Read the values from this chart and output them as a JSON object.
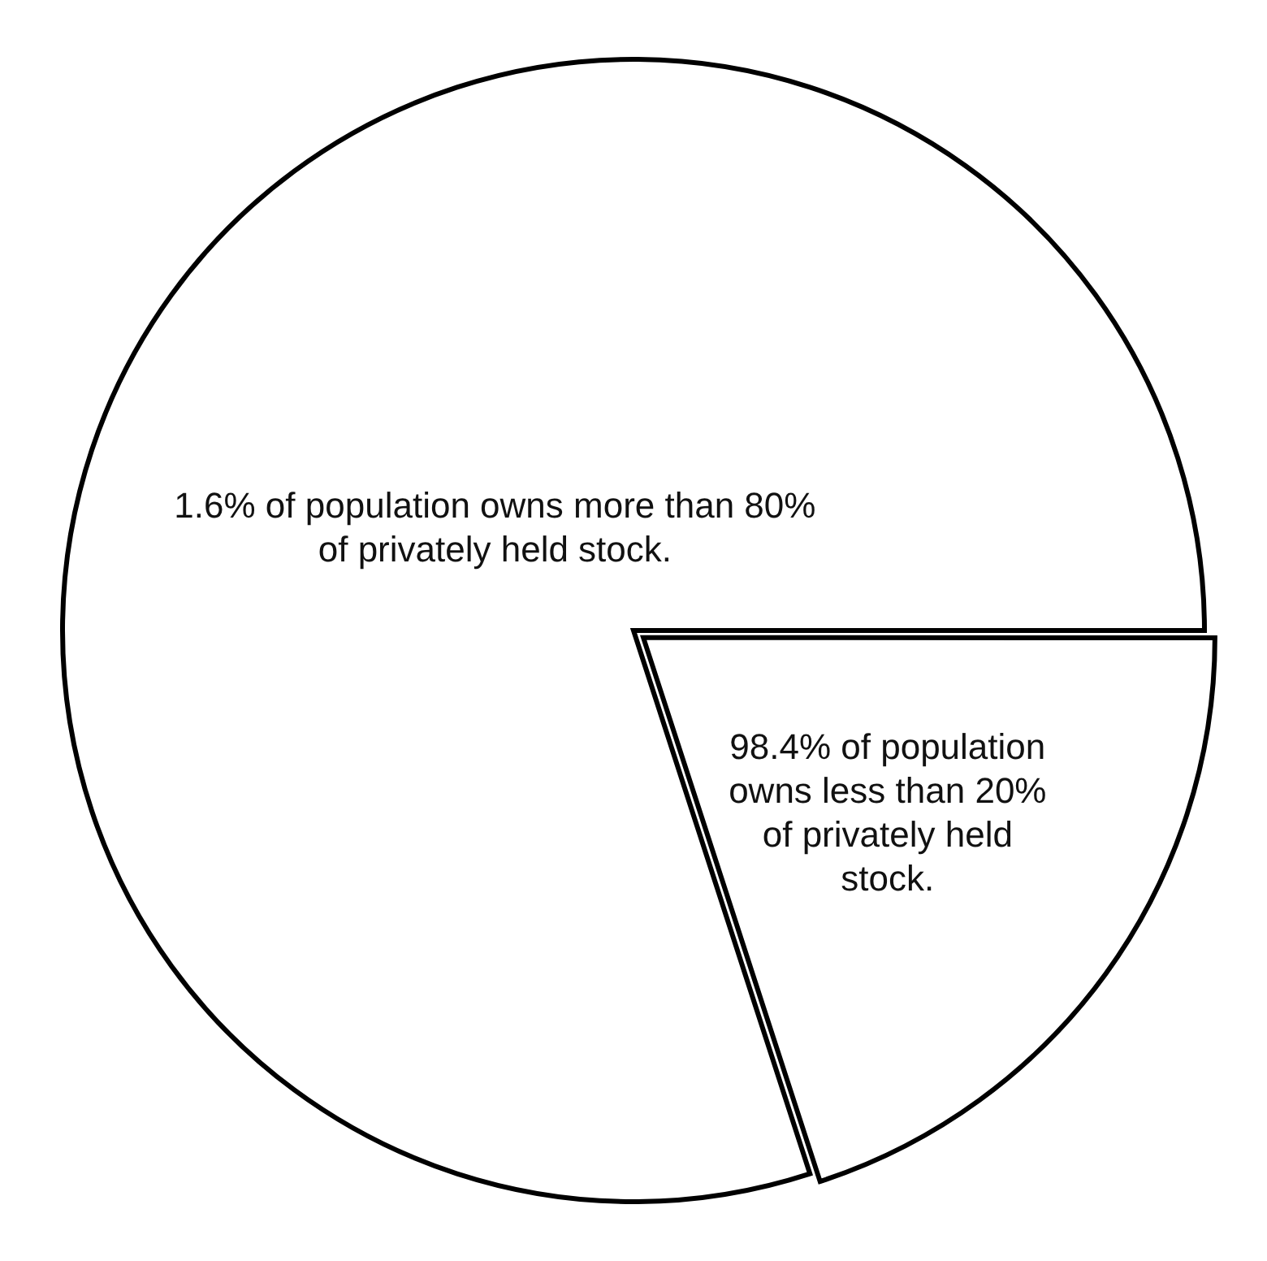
{
  "chart_data": {
    "type": "pie",
    "categories": [
      "1.6% of population owns more than 80% of privately held stock.",
      "98.4% of population owns less than 20% of privately held stock."
    ],
    "values": [
      80,
      20
    ],
    "colors": [
      "#ffffff",
      "#ffffff"
    ],
    "legend": false
  }
}
